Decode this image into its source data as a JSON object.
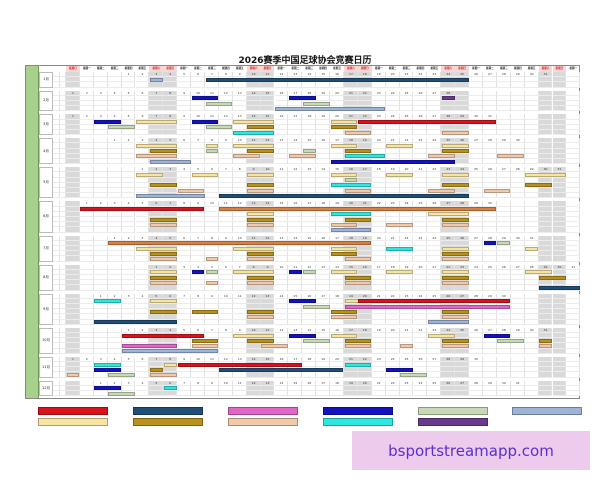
{
  "title": "2026赛季中国足球协会竞赛日历",
  "watermark": "bsportstreamapp.com",
  "weekdays": [
    "星期日",
    "星期一",
    "星期二",
    "星期三",
    "星期四",
    "星期五",
    "星期六"
  ],
  "colors": {
    "red": "#d7141e",
    "navy": "#1f4e79",
    "pink": "#e066c8",
    "blue": "#1212c0",
    "green": "#c6dbb5",
    "lightblue": "#9db3d8",
    "yellow": "#f7e4a0",
    "gold": "#b8901c",
    "peach": "#f2c9a8",
    "cyan": "#2ee8e0",
    "purple": "#6a3a8c",
    "orange": "#d98040",
    "season_column": "#a8d08d",
    "weekend": "#d9d9d9"
  },
  "legend": [
    "red",
    "navy",
    "pink",
    "blue",
    "green",
    "lightblue",
    "yellow",
    "gold",
    "peach",
    "cyan",
    "purple"
  ],
  "months": [
    {
      "label": "1月",
      "first_weekday": 4,
      "days": 31,
      "lanes": 2,
      "events": [
        [
          "lightblue",
          3,
          3,
          1
        ],
        [
          "navy",
          7,
          25,
          1
        ]
      ]
    },
    {
      "label": "2月",
      "first_weekday": 0,
      "days": 28,
      "lanes": 3,
      "events": [
        [
          "blue",
          10,
          11,
          1
        ],
        [
          "green",
          11,
          12,
          2
        ],
        [
          "blue",
          17,
          18,
          1
        ],
        [
          "green",
          18,
          19,
          2
        ],
        [
          "purple",
          28,
          28,
          1
        ],
        [
          "lightblue",
          16,
          23,
          3
        ]
      ]
    },
    {
      "label": "3月",
      "first_weekday": 0,
      "days": 31,
      "lanes": 3,
      "events": [
        [
          "blue",
          3,
          4,
          1
        ],
        [
          "yellow",
          6,
          8,
          1
        ],
        [
          "blue",
          10,
          11,
          1
        ],
        [
          "yellow",
          13,
          15,
          1
        ],
        [
          "green",
          4,
          5,
          2
        ],
        [
          "green",
          11,
          12,
          2
        ],
        [
          "gold",
          14,
          15,
          2
        ],
        [
          "cyan",
          13,
          15,
          3
        ],
        [
          "yellow",
          20,
          21,
          1
        ],
        [
          "red",
          22,
          31,
          1
        ],
        [
          "gold",
          20,
          21,
          2
        ],
        [
          "peach",
          21,
          22,
          3
        ],
        [
          "peach",
          28,
          29,
          3
        ]
      ]
    },
    {
      "label": "4月",
      "first_weekday": 3,
      "days": 30,
      "lanes": 4,
      "events": [
        [
          "yellow",
          3,
          5,
          1
        ],
        [
          "gold",
          4,
          5,
          2
        ],
        [
          "peach",
          3,
          5,
          3
        ],
        [
          "lightblue",
          4,
          6,
          4
        ],
        [
          "yellow",
          8,
          8,
          1
        ],
        [
          "green",
          8,
          8,
          2
        ],
        [
          "yellow",
          10,
          12,
          1
        ],
        [
          "gold",
          11,
          12,
          2
        ],
        [
          "peach",
          10,
          11,
          3
        ],
        [
          "green",
          15,
          15,
          2
        ],
        [
          "peach",
          14,
          15,
          3
        ],
        [
          "yellow",
          17,
          18,
          1
        ],
        [
          "gold",
          18,
          19,
          2
        ],
        [
          "cyan",
          18,
          20,
          3
        ],
        [
          "blue",
          17,
          25,
          4
        ],
        [
          "yellow",
          21,
          22,
          1
        ],
        [
          "yellow",
          25,
          26,
          1
        ],
        [
          "gold",
          25,
          26,
          2
        ],
        [
          "peach",
          24,
          25,
          3
        ],
        [
          "peach",
          29,
          30,
          3
        ]
      ]
    },
    {
      "label": "5月",
      "first_weekday": 5,
      "days": 31,
      "lanes": 5,
      "events": [
        [
          "yellow",
          1,
          2,
          1
        ],
        [
          "yellow",
          5,
          6,
          1
        ],
        [
          "gold",
          2,
          3,
          3
        ],
        [
          "peach",
          4,
          5,
          4
        ],
        [
          "lightblue",
          1,
          5,
          5
        ],
        [
          "yellow",
          9,
          10,
          1
        ],
        [
          "gold",
          9,
          10,
          3
        ],
        [
          "peach",
          9,
          10,
          4
        ],
        [
          "navy",
          7,
          24,
          5
        ],
        [
          "yellow",
          15,
          16,
          1
        ],
        [
          "green",
          16,
          16,
          2
        ],
        [
          "cyan",
          15,
          17,
          3
        ],
        [
          "peach",
          16,
          17,
          4
        ],
        [
          "yellow",
          19,
          20,
          1
        ],
        [
          "yellow",
          23,
          24,
          1
        ],
        [
          "gold",
          23,
          24,
          3
        ],
        [
          "peach",
          22,
          23,
          4
        ],
        [
          "peach",
          26,
          27,
          4
        ],
        [
          "yellow",
          29,
          31,
          1
        ],
        [
          "gold",
          29,
          30,
          3
        ]
      ]
    },
    {
      "label": "6月",
      "first_weekday": 1,
      "days": 30,
      "lanes": 5,
      "events": [
        [
          "red",
          1,
          9,
          1
        ],
        [
          "orange",
          11,
          30,
          1
        ],
        [
          "gold",
          6,
          7,
          3
        ],
        [
          "peach",
          6,
          7,
          4
        ],
        [
          "yellow",
          13,
          14,
          2
        ],
        [
          "gold",
          13,
          14,
          3
        ],
        [
          "peach",
          13,
          14,
          4
        ],
        [
          "cyan",
          19,
          21,
          2
        ],
        [
          "gold",
          20,
          21,
          3
        ],
        [
          "peach",
          19,
          20,
          4
        ],
        [
          "lightblue",
          19,
          21,
          5
        ],
        [
          "peach",
          23,
          24,
          4
        ],
        [
          "yellow",
          26,
          28,
          2
        ],
        [
          "gold",
          27,
          28,
          3
        ],
        [
          "peach",
          27,
          28,
          4
        ]
      ]
    },
    {
      "label": "7月",
      "first_weekday": 3,
      "days": 31,
      "lanes": 4,
      "events": [
        [
          "orange",
          1,
          19,
          1
        ],
        [
          "yellow",
          3,
          5,
          2
        ],
        [
          "gold",
          4,
          5,
          3
        ],
        [
          "peach",
          4,
          5,
          4
        ],
        [
          "peach",
          8,
          8,
          4
        ],
        [
          "yellow",
          10,
          12,
          2
        ],
        [
          "gold",
          11,
          12,
          3
        ],
        [
          "peach",
          11,
          12,
          4
        ],
        [
          "yellow",
          17,
          18,
          2
        ],
        [
          "gold",
          17,
          18,
          3
        ],
        [
          "peach",
          18,
          19,
          4
        ],
        [
          "cyan",
          21,
          22,
          2
        ],
        [
          "yellow",
          25,
          26,
          2
        ],
        [
          "gold",
          25,
          26,
          3
        ],
        [
          "peach",
          25,
          26,
          4
        ],
        [
          "blue",
          28,
          28,
          1
        ],
        [
          "green",
          29,
          29,
          1
        ],
        [
          "yellow",
          31,
          31,
          2
        ]
      ]
    },
    {
      "label": "8月",
      "first_weekday": 6,
      "days": 31,
      "lanes": 4,
      "events": [
        [
          "yellow",
          1,
          2,
          1
        ],
        [
          "gold",
          1,
          2,
          2
        ],
        [
          "peach",
          1,
          2,
          3
        ],
        [
          "blue",
          4,
          4,
          1
        ],
        [
          "green",
          5,
          5,
          1
        ],
        [
          "peach",
          5,
          5,
          3
        ],
        [
          "yellow",
          7,
          9,
          1
        ],
        [
          "gold",
          8,
          9,
          2
        ],
        [
          "peach",
          8,
          9,
          3
        ],
        [
          "blue",
          11,
          11,
          1
        ],
        [
          "green",
          12,
          12,
          1
        ],
        [
          "yellow",
          14,
          15,
          1
        ],
        [
          "gold",
          15,
          16,
          2
        ],
        [
          "peach",
          15,
          16,
          3
        ],
        [
          "yellow",
          18,
          19,
          1
        ],
        [
          "yellow",
          22,
          23,
          1
        ],
        [
          "gold",
          22,
          23,
          2
        ],
        [
          "peach",
          22,
          23,
          3
        ],
        [
          "yellow",
          28,
          29,
          1
        ],
        [
          "gold",
          29,
          30,
          2
        ],
        [
          "navy",
          29,
          31,
          4
        ]
      ]
    },
    {
      "label": "9月",
      "first_weekday": 2,
      "days": 30,
      "lanes": 5,
      "events": [
        [
          "cyan",
          1,
          2,
          1
        ],
        [
          "yellow",
          5,
          6,
          1
        ],
        [
          "blue",
          15,
          16,
          1
        ],
        [
          "yellow",
          19,
          20,
          1
        ],
        [
          "red",
          20,
          30,
          1
        ],
        [
          "green",
          16,
          17,
          2
        ],
        [
          "pink",
          19,
          30,
          2
        ],
        [
          "gold",
          5,
          6,
          3
        ],
        [
          "gold",
          8,
          9,
          3
        ],
        [
          "gold",
          12,
          13,
          3
        ],
        [
          "gold",
          18,
          19,
          3
        ],
        [
          "gold",
          26,
          27,
          3
        ],
        [
          "peach",
          12,
          13,
          4
        ],
        [
          "peach",
          18,
          19,
          4
        ],
        [
          "peach",
          26,
          27,
          4
        ],
        [
          "navy",
          1,
          6,
          5
        ],
        [
          "lightblue",
          25,
          27,
          5
        ]
      ]
    },
    {
      "label": "10月",
      "first_weekday": 4,
      "days": 31,
      "lanes": 4,
      "events": [
        [
          "red",
          1,
          6,
          1
        ],
        [
          "yellow",
          9,
          11,
          1
        ],
        [
          "blue",
          13,
          14,
          1
        ],
        [
          "yellow",
          16,
          17,
          1
        ],
        [
          "yellow",
          23,
          24,
          1
        ],
        [
          "blue",
          27,
          28,
          1
        ],
        [
          "gold",
          6,
          7,
          2
        ],
        [
          "gold",
          10,
          11,
          2
        ],
        [
          "green",
          14,
          15,
          2
        ],
        [
          "gold",
          17,
          18,
          2
        ],
        [
          "gold",
          24,
          25,
          2
        ],
        [
          "green",
          28,
          29,
          2
        ],
        [
          "gold",
          31,
          31,
          2
        ],
        [
          "pink",
          1,
          4,
          3
        ],
        [
          "peach",
          6,
          7,
          3
        ],
        [
          "peach",
          11,
          12,
          3
        ],
        [
          "peach",
          17,
          18,
          3
        ],
        [
          "peach",
          21,
          21,
          3
        ],
        [
          "peach",
          24,
          25,
          3
        ],
        [
          "peach",
          31,
          31,
          3
        ],
        [
          "lightblue",
          1,
          7,
          4
        ]
      ]
    },
    {
      "label": "11月",
      "first_weekday": 0,
      "days": 30,
      "lanes": 3,
      "events": [
        [
          "cyan",
          3,
          4,
          1
        ],
        [
          "yellow",
          8,
          8,
          1
        ],
        [
          "red",
          9,
          17,
          1
        ],
        [
          "cyan",
          21,
          22,
          1
        ],
        [
          "blue",
          3,
          4,
          2
        ],
        [
          "gold",
          7,
          7,
          2
        ],
        [
          "navy",
          12,
          20,
          2
        ],
        [
          "blue",
          24,
          25,
          2
        ],
        [
          "peach",
          1,
          1,
          3
        ],
        [
          "green",
          4,
          5,
          3
        ],
        [
          "peach",
          7,
          8,
          3
        ],
        [
          "green",
          25,
          26,
          3
        ]
      ]
    },
    {
      "label": "12月",
      "first_weekday": 2,
      "days": 31,
      "lanes": 2,
      "events": [
        [
          "blue",
          1,
          2,
          1
        ],
        [
          "cyan",
          6,
          6,
          1
        ],
        [
          "green",
          2,
          3,
          2
        ]
      ]
    }
  ]
}
